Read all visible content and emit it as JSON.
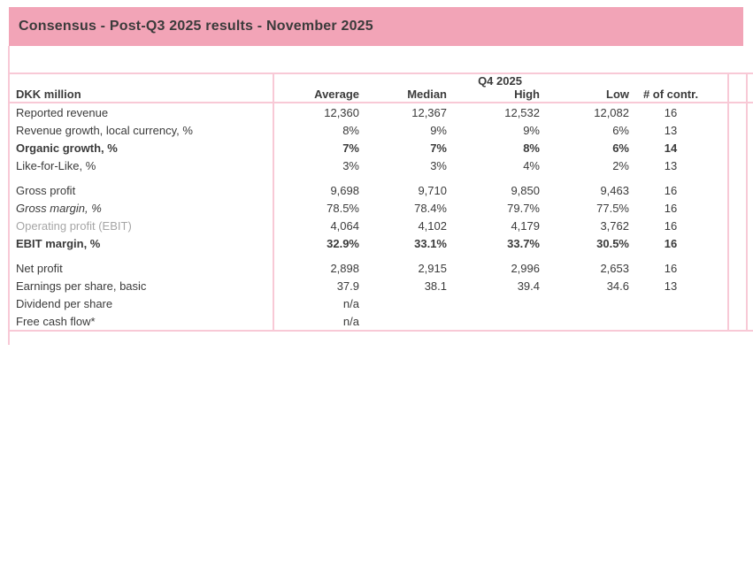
{
  "title": "Consensus - Post-Q3 2025 results - November 2025",
  "colors": {
    "header_bar": "#F2A4B7",
    "grid_line": "#F8C9D6",
    "text": "#3B3B3B",
    "muted_label": "#A6A6A6"
  },
  "table": {
    "corner_label": "DKK million",
    "group_header": "Q4 2025",
    "columns": [
      "Average",
      "Median",
      "High",
      "Low",
      "# of contr."
    ],
    "groups": [
      {
        "rows": [
          {
            "label": "Reported revenue",
            "style": "normal",
            "values": [
              "12,360",
              "12,367",
              "12,532",
              "12,082",
              "16"
            ]
          },
          {
            "label": "Revenue growth, local currency, %",
            "style": "normal",
            "values": [
              "8%",
              "9%",
              "9%",
              "6%",
              "13"
            ]
          },
          {
            "label": "Organic growth, %",
            "style": "bold",
            "values": [
              "7%",
              "7%",
              "8%",
              "6%",
              "14"
            ]
          },
          {
            "label": "Like-for-Like, %",
            "style": "normal",
            "values": [
              "3%",
              "3%",
              "4%",
              "2%",
              "13"
            ]
          }
        ]
      },
      {
        "rows": [
          {
            "label": "Gross profit",
            "style": "normal",
            "values": [
              "9,698",
              "9,710",
              "9,850",
              "9,463",
              "16"
            ]
          },
          {
            "label": "Gross margin, %",
            "style": "italic",
            "values": [
              "78.5%",
              "78.4%",
              "79.7%",
              "77.5%",
              "16"
            ]
          },
          {
            "label": "Operating profit (EBIT)",
            "style": "gray",
            "values": [
              "4,064",
              "4,102",
              "4,179",
              "3,762",
              "16"
            ]
          },
          {
            "label": "EBIT margin, %",
            "style": "bold",
            "values": [
              "32.9%",
              "33.1%",
              "33.7%",
              "30.5%",
              "16"
            ]
          }
        ]
      },
      {
        "rows": [
          {
            "label": "Net profit",
            "style": "normal",
            "values": [
              "2,898",
              "2,915",
              "2,996",
              "2,653",
              "16"
            ]
          },
          {
            "label": "Earnings per share, basic",
            "style": "normal",
            "values": [
              "37.9",
              "38.1",
              "39.4",
              "34.6",
              "13"
            ]
          },
          {
            "label": "Dividend per share",
            "style": "normal",
            "values": [
              "n/a",
              "",
              "",
              "",
              ""
            ]
          },
          {
            "label": "Free cash flow*",
            "style": "normal",
            "values": [
              "n/a",
              "",
              "",
              "",
              ""
            ]
          }
        ]
      }
    ]
  }
}
